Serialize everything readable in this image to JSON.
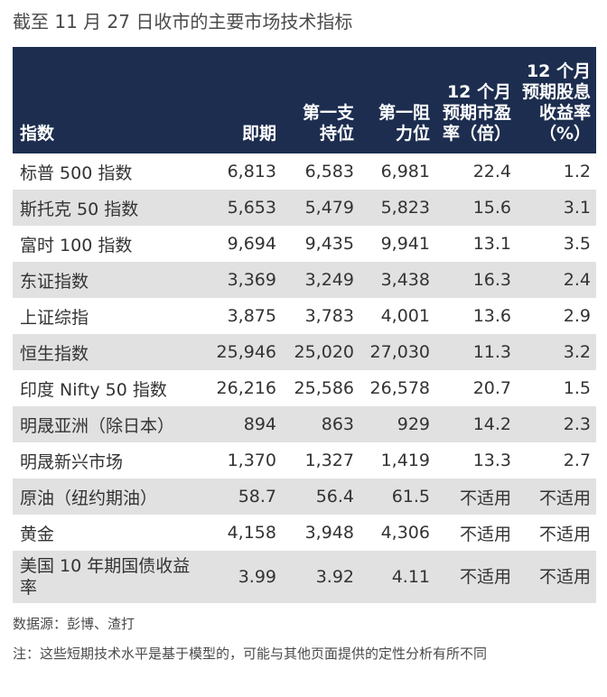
{
  "title": "截至 11 月 27 日收市的主要市场技术指标",
  "headers": [
    "指数",
    "即期",
    "第一支持位",
    "第一阻力位",
    "12 个月预期市盈率（倍）",
    "12 个月预期股息收益率（%）"
  ],
  "rows": [
    [
      "标普 500 指数",
      "6,813",
      "6,583",
      "6,981",
      "22.4",
      "1.2"
    ],
    [
      "斯托克 50 指数",
      "5,653",
      "5,479",
      "5,823",
      "15.6",
      "3.1"
    ],
    [
      "富时 100 指数",
      "9,694",
      "9,435",
      "9,941",
      "13.1",
      "3.5"
    ],
    [
      "东证指数",
      "3,369",
      "3,249",
      "3,438",
      "16.3",
      "2.4"
    ],
    [
      "上证综指",
      "3,875",
      "3,783",
      "4,001",
      "13.6",
      "2.9"
    ],
    [
      "恒生指数",
      "25,946",
      "25,020",
      "27,030",
      "11.3",
      "3.2"
    ],
    [
      "印度 Nifty 50 指数",
      "26,216",
      "25,586",
      "26,578",
      "20.7",
      "1.5"
    ],
    [
      "明晟亚洲（除日本）",
      "894",
      "863",
      "929",
      "14.2",
      "2.3"
    ],
    [
      "明晟新兴市场",
      "1,370",
      "1,327",
      "1,419",
      "13.3",
      "2.7"
    ],
    [
      "原油（纽约期油）",
      "58.7",
      "56.4",
      "61.5",
      "不适用",
      "不适用"
    ],
    [
      "黄金",
      "4,158",
      "3,948",
      "4,306",
      "不适用",
      "不适用"
    ],
    [
      "美国 10 年期国债收益率",
      "3.99",
      "3.92",
      "4.11",
      "不适用",
      "不适用"
    ]
  ],
  "source": "数据源：彭博、渣打",
  "note": "注：这些短期技术水平是基于模型的，可能与其他页面提供的定性分析有所不同"
}
